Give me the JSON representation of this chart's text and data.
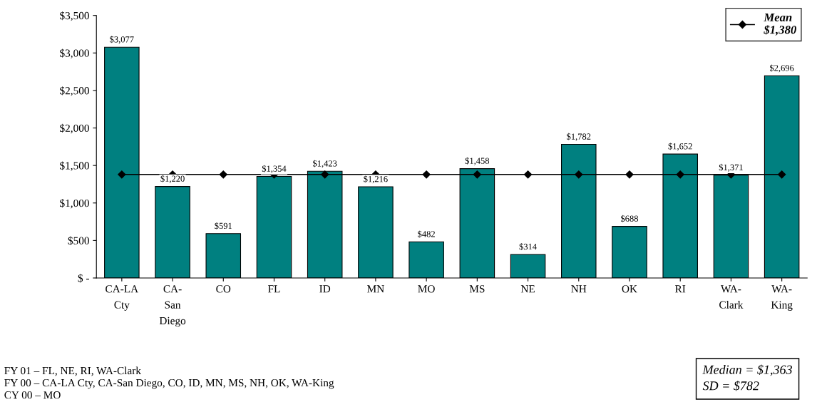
{
  "chart_data": {
    "type": "bar",
    "categories": [
      "CA-LA\nCty",
      "CA-\nSan\nDiego",
      "CO",
      "FL",
      "ID",
      "MN",
      "MO",
      "MS",
      "NE",
      "NH",
      "OK",
      "RI",
      "WA-\nClark",
      "WA-\nKing"
    ],
    "series": [
      {
        "color": "#008080",
        "values": [
          3077,
          1220,
          591,
          1354,
          1423,
          1216,
          482,
          1458,
          314,
          1782,
          688,
          1652,
          1371,
          2696
        ],
        "value_labels": [
          "$3,077",
          "$1,220",
          "$591",
          "$1,354",
          "$1,423",
          "$1,216",
          "$482",
          "$1,458",
          "$314",
          "$1,782",
          "$688",
          "$1,652",
          "$1,371",
          "$2,696"
        ]
      },
      {
        "type": "line",
        "name": "Mean\n$1,380",
        "color": "#000000",
        "marker": "diamond",
        "values": [
          1380,
          1380,
          1380,
          1380,
          1380,
          1380,
          1380,
          1380,
          1380,
          1380,
          1380,
          1380,
          1380,
          1380
        ]
      }
    ],
    "ylim": [
      0,
      3500
    ],
    "yticks": [
      {
        "value": 0,
        "label": "$ -"
      },
      {
        "value": 500,
        "label": "$500"
      },
      {
        "value": 1000,
        "label": "$1,000"
      },
      {
        "value": 1500,
        "label": "$1,500"
      },
      {
        "value": 2000,
        "label": "$2,000"
      },
      {
        "value": 2500,
        "label": "$2,500"
      },
      {
        "value": 3000,
        "label": "$3,000"
      },
      {
        "value": 3500,
        "label": "$3,500"
      }
    ],
    "grid": false,
    "legend": "top right",
    "annotations": [
      "FY 01 – FL, NE, RI, WA-Clark\nFY 00 – CA-LA Cty, CA-San Diego, CO, ID, MN, MS, NH, OK, WA-King\nCY 00 – MO",
      "Median = $1,363\nSD = $782"
    ]
  }
}
